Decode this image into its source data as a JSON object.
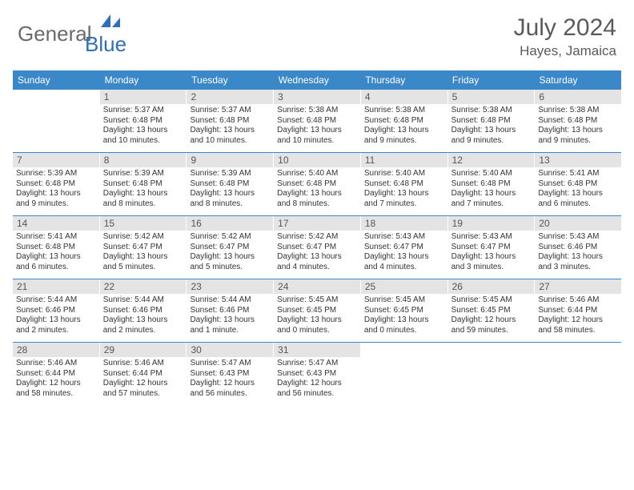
{
  "brand": {
    "part1": "General",
    "part2": "Blue"
  },
  "title": {
    "month": "July 2024",
    "location": "Hayes, Jamaica"
  },
  "colors": {
    "header_bg": "#3b88c9",
    "daynum_bg": "#e4e4e4",
    "rule": "#3b88c9"
  },
  "day_names": [
    "Sunday",
    "Monday",
    "Tuesday",
    "Wednesday",
    "Thursday",
    "Friday",
    "Saturday"
  ],
  "weeks": [
    [
      {
        "n": "",
        "empty": true
      },
      {
        "n": "1",
        "sr": "Sunrise: 5:37 AM",
        "ss": "Sunset: 6:48 PM",
        "d1": "Daylight: 13 hours",
        "d2": "and 10 minutes."
      },
      {
        "n": "2",
        "sr": "Sunrise: 5:37 AM",
        "ss": "Sunset: 6:48 PM",
        "d1": "Daylight: 13 hours",
        "d2": "and 10 minutes."
      },
      {
        "n": "3",
        "sr": "Sunrise: 5:38 AM",
        "ss": "Sunset: 6:48 PM",
        "d1": "Daylight: 13 hours",
        "d2": "and 10 minutes."
      },
      {
        "n": "4",
        "sr": "Sunrise: 5:38 AM",
        "ss": "Sunset: 6:48 PM",
        "d1": "Daylight: 13 hours",
        "d2": "and 9 minutes."
      },
      {
        "n": "5",
        "sr": "Sunrise: 5:38 AM",
        "ss": "Sunset: 6:48 PM",
        "d1": "Daylight: 13 hours",
        "d2": "and 9 minutes."
      },
      {
        "n": "6",
        "sr": "Sunrise: 5:38 AM",
        "ss": "Sunset: 6:48 PM",
        "d1": "Daylight: 13 hours",
        "d2": "and 9 minutes."
      }
    ],
    [
      {
        "n": "7",
        "sr": "Sunrise: 5:39 AM",
        "ss": "Sunset: 6:48 PM",
        "d1": "Daylight: 13 hours",
        "d2": "and 9 minutes."
      },
      {
        "n": "8",
        "sr": "Sunrise: 5:39 AM",
        "ss": "Sunset: 6:48 PM",
        "d1": "Daylight: 13 hours",
        "d2": "and 8 minutes."
      },
      {
        "n": "9",
        "sr": "Sunrise: 5:39 AM",
        "ss": "Sunset: 6:48 PM",
        "d1": "Daylight: 13 hours",
        "d2": "and 8 minutes."
      },
      {
        "n": "10",
        "sr": "Sunrise: 5:40 AM",
        "ss": "Sunset: 6:48 PM",
        "d1": "Daylight: 13 hours",
        "d2": "and 8 minutes."
      },
      {
        "n": "11",
        "sr": "Sunrise: 5:40 AM",
        "ss": "Sunset: 6:48 PM",
        "d1": "Daylight: 13 hours",
        "d2": "and 7 minutes."
      },
      {
        "n": "12",
        "sr": "Sunrise: 5:40 AM",
        "ss": "Sunset: 6:48 PM",
        "d1": "Daylight: 13 hours",
        "d2": "and 7 minutes."
      },
      {
        "n": "13",
        "sr": "Sunrise: 5:41 AM",
        "ss": "Sunset: 6:48 PM",
        "d1": "Daylight: 13 hours",
        "d2": "and 6 minutes."
      }
    ],
    [
      {
        "n": "14",
        "sr": "Sunrise: 5:41 AM",
        "ss": "Sunset: 6:48 PM",
        "d1": "Daylight: 13 hours",
        "d2": "and 6 minutes."
      },
      {
        "n": "15",
        "sr": "Sunrise: 5:42 AM",
        "ss": "Sunset: 6:47 PM",
        "d1": "Daylight: 13 hours",
        "d2": "and 5 minutes."
      },
      {
        "n": "16",
        "sr": "Sunrise: 5:42 AM",
        "ss": "Sunset: 6:47 PM",
        "d1": "Daylight: 13 hours",
        "d2": "and 5 minutes."
      },
      {
        "n": "17",
        "sr": "Sunrise: 5:42 AM",
        "ss": "Sunset: 6:47 PM",
        "d1": "Daylight: 13 hours",
        "d2": "and 4 minutes."
      },
      {
        "n": "18",
        "sr": "Sunrise: 5:43 AM",
        "ss": "Sunset: 6:47 PM",
        "d1": "Daylight: 13 hours",
        "d2": "and 4 minutes."
      },
      {
        "n": "19",
        "sr": "Sunrise: 5:43 AM",
        "ss": "Sunset: 6:47 PM",
        "d1": "Daylight: 13 hours",
        "d2": "and 3 minutes."
      },
      {
        "n": "20",
        "sr": "Sunrise: 5:43 AM",
        "ss": "Sunset: 6:46 PM",
        "d1": "Daylight: 13 hours",
        "d2": "and 3 minutes."
      }
    ],
    [
      {
        "n": "21",
        "sr": "Sunrise: 5:44 AM",
        "ss": "Sunset: 6:46 PM",
        "d1": "Daylight: 13 hours",
        "d2": "and 2 minutes."
      },
      {
        "n": "22",
        "sr": "Sunrise: 5:44 AM",
        "ss": "Sunset: 6:46 PM",
        "d1": "Daylight: 13 hours",
        "d2": "and 2 minutes."
      },
      {
        "n": "23",
        "sr": "Sunrise: 5:44 AM",
        "ss": "Sunset: 6:46 PM",
        "d1": "Daylight: 13 hours",
        "d2": "and 1 minute."
      },
      {
        "n": "24",
        "sr": "Sunrise: 5:45 AM",
        "ss": "Sunset: 6:45 PM",
        "d1": "Daylight: 13 hours",
        "d2": "and 0 minutes."
      },
      {
        "n": "25",
        "sr": "Sunrise: 5:45 AM",
        "ss": "Sunset: 6:45 PM",
        "d1": "Daylight: 13 hours",
        "d2": "and 0 minutes."
      },
      {
        "n": "26",
        "sr": "Sunrise: 5:45 AM",
        "ss": "Sunset: 6:45 PM",
        "d1": "Daylight: 12 hours",
        "d2": "and 59 minutes."
      },
      {
        "n": "27",
        "sr": "Sunrise: 5:46 AM",
        "ss": "Sunset: 6:44 PM",
        "d1": "Daylight: 12 hours",
        "d2": "and 58 minutes."
      }
    ],
    [
      {
        "n": "28",
        "sr": "Sunrise: 5:46 AM",
        "ss": "Sunset: 6:44 PM",
        "d1": "Daylight: 12 hours",
        "d2": "and 58 minutes."
      },
      {
        "n": "29",
        "sr": "Sunrise: 5:46 AM",
        "ss": "Sunset: 6:44 PM",
        "d1": "Daylight: 12 hours",
        "d2": "and 57 minutes."
      },
      {
        "n": "30",
        "sr": "Sunrise: 5:47 AM",
        "ss": "Sunset: 6:43 PM",
        "d1": "Daylight: 12 hours",
        "d2": "and 56 minutes."
      },
      {
        "n": "31",
        "sr": "Sunrise: 5:47 AM",
        "ss": "Sunset: 6:43 PM",
        "d1": "Daylight: 12 hours",
        "d2": "and 56 minutes."
      },
      {
        "n": "",
        "empty": true
      },
      {
        "n": "",
        "empty": true
      },
      {
        "n": "",
        "empty": true
      }
    ]
  ]
}
